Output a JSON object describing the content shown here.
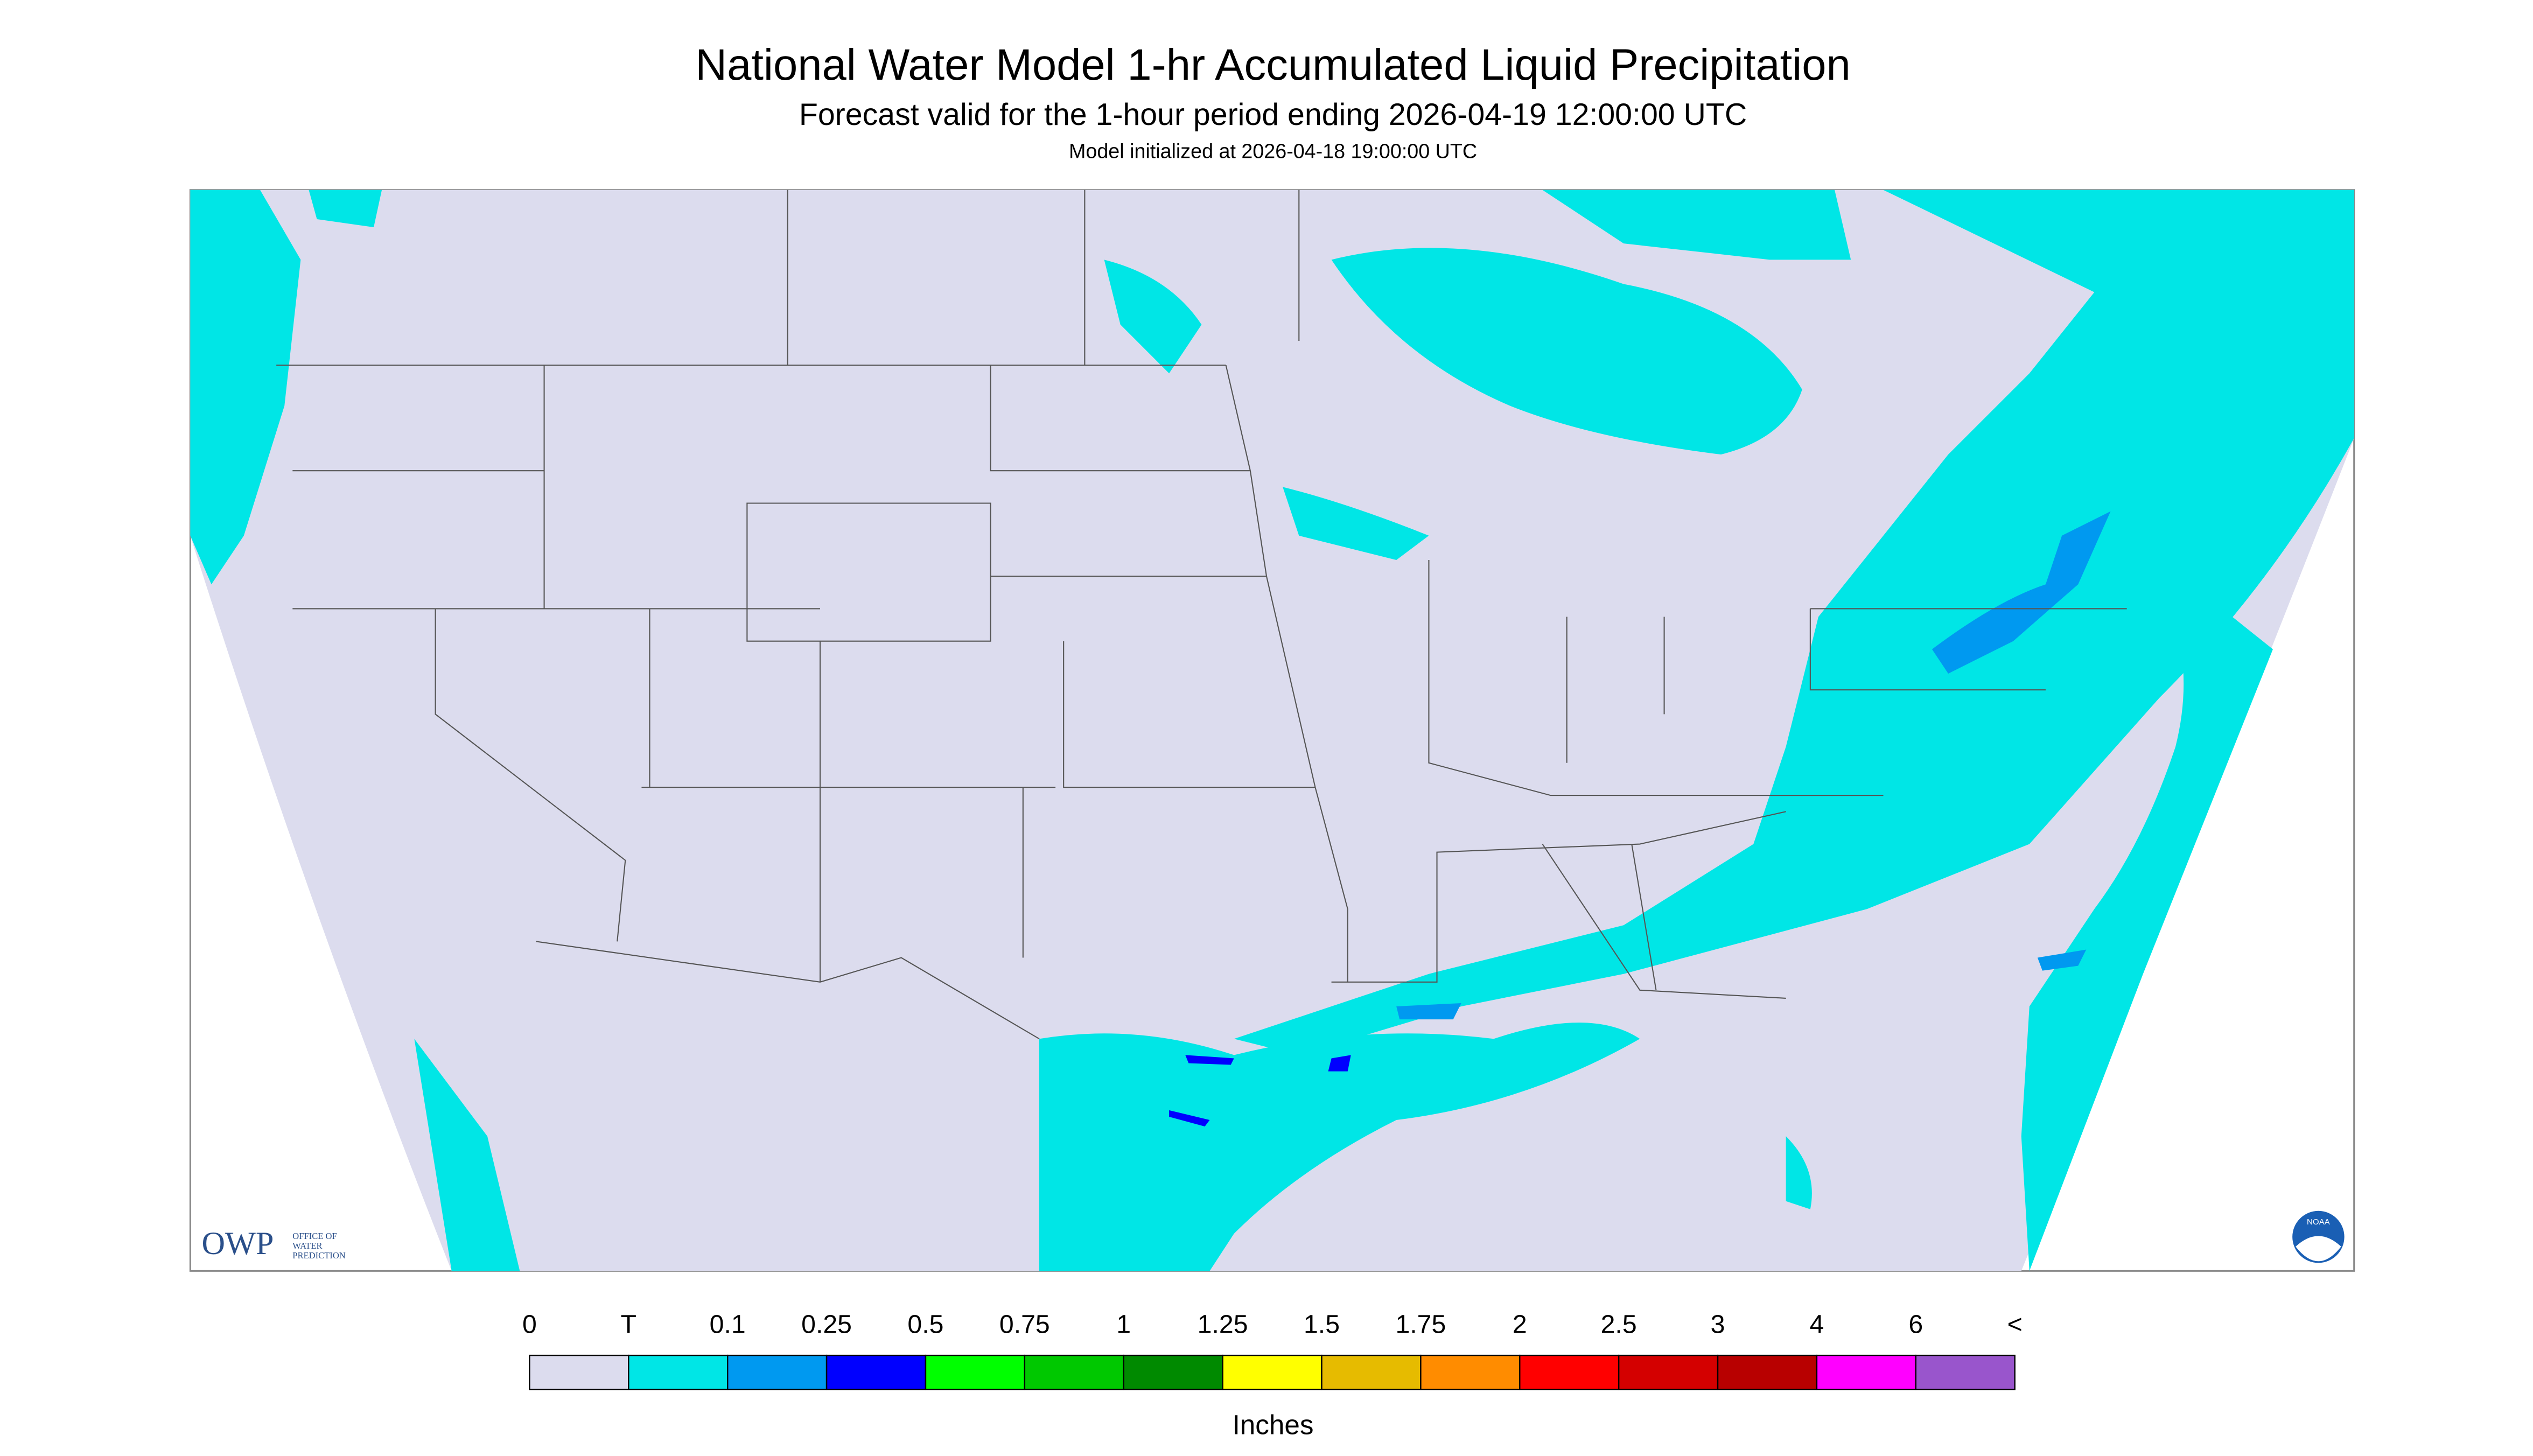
{
  "header": {
    "title": "National Water Model 1-hr Accumulated Liquid Precipitation",
    "subtitle": "Forecast valid for the 1-hour period ending 2026-04-19 12:00:00 UTC",
    "initialized": "Model initialized at 2026-04-18 19:00:00 UTC"
  },
  "logos": {
    "owp": "OWP",
    "owp_full": [
      "OFFICE OF",
      "WATER",
      "PREDICTION"
    ],
    "noaa": "NOAA"
  },
  "legend": {
    "labels": [
      "0",
      "T",
      "0.1",
      "0.25",
      "0.5",
      "0.75",
      "1",
      "1.25",
      "1.5",
      "1.75",
      "2",
      "2.5",
      "3",
      "4",
      "6",
      "<"
    ],
    "colors": [
      "#dcdcee",
      "#00e6e6",
      "#0099f0",
      "#0000ff",
      "#00ff00",
      "#00c800",
      "#008a00",
      "#ffff00",
      "#e6bb00",
      "#ff8c00",
      "#ff0000",
      "#d40000",
      "#b80000",
      "#ff00ff",
      "#9955cc"
    ],
    "unit": "Inches"
  }
}
